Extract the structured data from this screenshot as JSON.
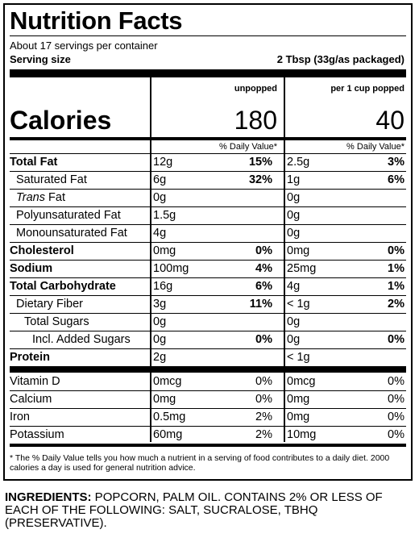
{
  "title": "Nutrition Facts",
  "servings": "About 17 servings per container",
  "serving_size_label": "Serving size",
  "serving_size_value": "2 Tbsp (33g/as packaged)",
  "col1_header": "unpopped",
  "col2_header": "per 1 cup popped",
  "calories_label": "Calories",
  "calories_col1": "180",
  "calories_col2": "40",
  "dv_header": "% Daily Value*",
  "rows": [
    {
      "label": "Total Fat",
      "bold": true,
      "indent": 0,
      "a1": "12g",
      "p1": "15%",
      "a2": "2.5g",
      "p2": "3%"
    },
    {
      "label": "Saturated Fat",
      "bold": false,
      "indent": 1,
      "a1": "6g",
      "p1": "32%",
      "a2": "1g",
      "p2": "6%"
    },
    {
      "label": "Trans",
      "label_suffix": " Fat",
      "bold": false,
      "italic": true,
      "indent": 1,
      "a1": "0g",
      "p1": "",
      "a2": "0g",
      "p2": ""
    },
    {
      "label": "Polyunsaturated Fat",
      "bold": false,
      "indent": 1,
      "a1": "1.5g",
      "p1": "",
      "a2": "0g",
      "p2": ""
    },
    {
      "label": "Monounsaturated Fat",
      "bold": false,
      "indent": 1,
      "a1": "4g",
      "p1": "",
      "a2": "0g",
      "p2": ""
    },
    {
      "label": "Cholesterol",
      "bold": true,
      "indent": 0,
      "a1": "0mg",
      "p1": "0%",
      "a2": "0mg",
      "p2": "0%"
    },
    {
      "label": "Sodium",
      "bold": true,
      "indent": 0,
      "a1": "100mg",
      "p1": "4%",
      "a2": "25mg",
      "p2": "1%"
    },
    {
      "label": "Total Carbohydrate",
      "bold": true,
      "indent": 0,
      "a1": "16g",
      "p1": "6%",
      "a2": "4g",
      "p2": "1%"
    },
    {
      "label": "Dietary Fiber",
      "bold": false,
      "indent": 1,
      "a1": "3g",
      "p1": "11%",
      "a2": "< 1g",
      "p2": "2%"
    },
    {
      "label": "Total Sugars",
      "bold": false,
      "indent": 2,
      "a1": "0g",
      "p1": "",
      "a2": "0g",
      "p2": ""
    },
    {
      "label": "Incl. Added Sugars",
      "bold": false,
      "indent": 3,
      "a1": "0g",
      "p1": "0%",
      "a2": "0g",
      "p2": "0%"
    },
    {
      "label": "Protein",
      "bold": true,
      "indent": 0,
      "a1": "2g",
      "p1": "",
      "a2": "< 1g",
      "p2": ""
    }
  ],
  "vitamins": [
    {
      "label": "Vitamin D",
      "a1": "0mcg",
      "p1": "0%",
      "a2": "0mcg",
      "p2": "0%"
    },
    {
      "label": "Calcium",
      "a1": "0mg",
      "p1": "0%",
      "a2": "0mg",
      "p2": "0%"
    },
    {
      "label": "Iron",
      "a1": "0.5mg",
      "p1": "2%",
      "a2": "0mg",
      "p2": "0%"
    },
    {
      "label": "Potassium",
      "a1": "60mg",
      "p1": "2%",
      "a2": "10mg",
      "p2": "0%"
    }
  ],
  "footnote": "* The % Daily Value tells you how much a nutrient in a serving of food contributes to a daily diet. 2000 calories a day is used for general nutrition advice.",
  "ingredients_label": "INGREDIENTS:",
  "ingredients_text": " POPCORN, PALM OIL. CONTAINS 2% OR LESS OF EACH OF THE FOLLOWING: SALT, SUCRALOSE, TBHQ (PRESERVATIVE)."
}
